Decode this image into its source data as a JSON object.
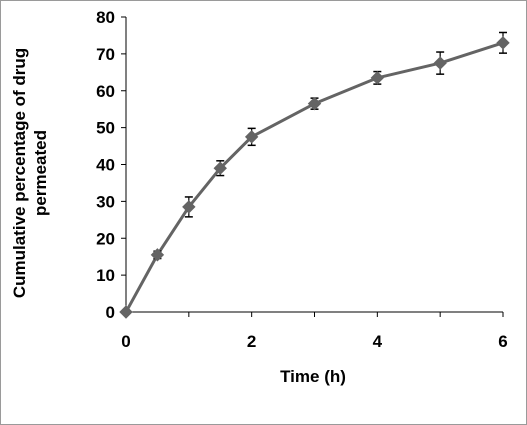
{
  "chart_data": {
    "type": "line",
    "xlabel": "Time (h)",
    "ylabel_lines": [
      "Cumulative percentage of drug",
      "permeated"
    ],
    "xlim": [
      0,
      6
    ],
    "ylim": [
      0,
      80
    ],
    "x_ticks": [
      0,
      2,
      4,
      6
    ],
    "y_ticks": [
      0,
      10,
      20,
      30,
      40,
      50,
      60,
      70,
      80
    ],
    "grid": false,
    "legend": "none",
    "series": [
      {
        "x": [
          0,
          0.5,
          1,
          1.5,
          2,
          3,
          4,
          5,
          6
        ],
        "y": [
          0,
          15.5,
          28.5,
          39.0,
          47.5,
          56.5,
          63.5,
          67.5,
          73.0
        ],
        "error": [
          0,
          1.0,
          2.7,
          2.0,
          2.3,
          1.5,
          1.7,
          3.0,
          2.8
        ],
        "color": "#646464",
        "marker": "diamond"
      }
    ]
  }
}
